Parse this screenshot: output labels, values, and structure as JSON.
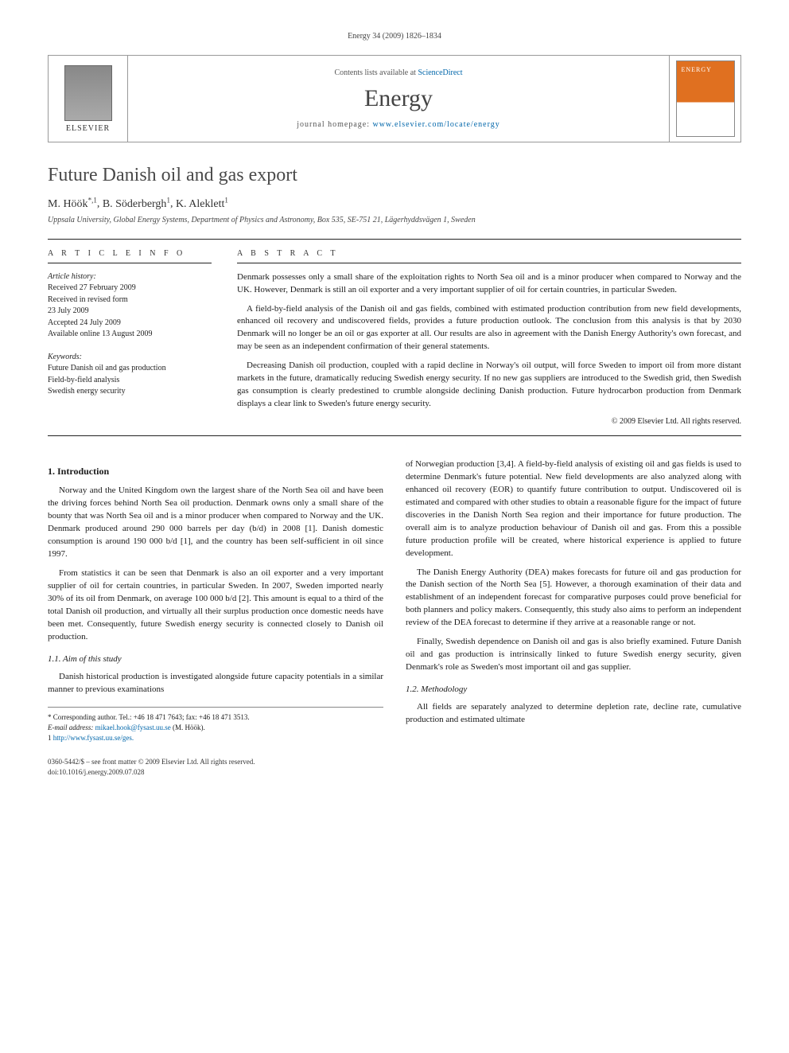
{
  "running_head": "Energy 34 (2009) 1826–1834",
  "masthead": {
    "publisher_label": "ELSEVIER",
    "contents_prefix": "Contents lists available at ",
    "contents_link_text": "ScienceDirect",
    "journal_name": "Energy",
    "homepage_prefix": "journal homepage: ",
    "homepage_url": "www.elsevier.com/locate/energy",
    "cover_title": "ENERGY"
  },
  "article": {
    "title": "Future Danish oil and gas export",
    "authors_html": "M. Höök *,1, B. Söderbergh 1, K. Aleklett 1",
    "authors": [
      {
        "name": "M. Höök",
        "marks": "*,1"
      },
      {
        "name": "B. Söderbergh",
        "marks": "1"
      },
      {
        "name": "K. Aleklett",
        "marks": "1"
      }
    ],
    "affiliation": "Uppsala University, Global Energy Systems, Department of Physics and Astronomy, Box 535, SE-751 21, Lägerhyddsvägen 1, Sweden"
  },
  "info": {
    "label": "A R T I C L E  I N F O",
    "history_label": "Article history:",
    "history": [
      "Received 27 February 2009",
      "Received in revised form",
      "23 July 2009",
      "Accepted 24 July 2009",
      "Available online 13 August 2009"
    ],
    "keywords_label": "Keywords:",
    "keywords": [
      "Future Danish oil and gas production",
      "Field-by-field analysis",
      "Swedish energy security"
    ]
  },
  "abstract": {
    "label": "A B S T R A C T",
    "paragraphs": [
      "Denmark possesses only a small share of the exploitation rights to North Sea oil and is a minor producer when compared to Norway and the UK. However, Denmark is still an oil exporter and a very important supplier of oil for certain countries, in particular Sweden.",
      "A field-by-field analysis of the Danish oil and gas fields, combined with estimated production contribution from new field developments, enhanced oil recovery and undiscovered fields, provides a future production outlook. The conclusion from this analysis is that by 2030 Denmark will no longer be an oil or gas exporter at all. Our results are also in agreement with the Danish Energy Authority's own forecast, and may be seen as an independent confirmation of their general statements.",
      "Decreasing Danish oil production, coupled with a rapid decline in Norway's oil output, will force Sweden to import oil from more distant markets in the future, dramatically reducing Swedish energy security. If no new gas suppliers are introduced to the Swedish grid, then Swedish gas consumption is clearly predestined to crumble alongside declining Danish production. Future hydrocarbon production from Denmark displays a clear link to Sweden's future energy security."
    ],
    "copyright": "© 2009 Elsevier Ltd. All rights reserved."
  },
  "body": {
    "s1_heading": "1. Introduction",
    "s1_p1": "Norway and the United Kingdom own the largest share of the North Sea oil and have been the driving forces behind North Sea oil production. Denmark owns only a small share of the bounty that was North Sea oil and is a minor producer when compared to Norway and the UK. Denmark produced around 290 000 barrels per day (b/d) in 2008 [1]. Danish domestic consumption is around 190 000 b/d [1], and the country has been self-sufficient in oil since 1997.",
    "s1_p2": "From statistics it can be seen that Denmark is also an oil exporter and a very important supplier of oil for certain countries, in particular Sweden. In 2007, Sweden imported nearly 30% of its oil from Denmark, on average 100 000 b/d [2]. This amount is equal to a third of the total Danish oil production, and virtually all their surplus production once domestic needs have been met. Consequently, future Swedish energy security is connected closely to Danish oil production.",
    "s11_heading": "1.1. Aim of this study",
    "s11_p1": "Danish historical production is investigated alongside future capacity potentials in a similar manner to previous examinations",
    "s11_p1_cont": "of Norwegian production [3,4]. A field-by-field analysis of existing oil and gas fields is used to determine Denmark's future potential. New field developments are also analyzed along with enhanced oil recovery (EOR) to quantify future contribution to output. Undiscovered oil is estimated and compared with other studies to obtain a reasonable figure for the impact of future discoveries in the Danish North Sea region and their importance for future production. The overall aim is to analyze production behaviour of Danish oil and gas. From this a possible future production profile will be created, where historical experience is applied to future development.",
    "s11_p2": "The Danish Energy Authority (DEA) makes forecasts for future oil and gas production for the Danish section of the North Sea [5]. However, a thorough examination of their data and establishment of an independent forecast for comparative purposes could prove beneficial for both planners and policy makers. Consequently, this study also aims to perform an independent review of the DEA forecast to determine if they arrive at a reasonable range or not.",
    "s11_p3": "Finally, Swedish dependence on Danish oil and gas is also briefly examined. Future Danish oil and gas production is intrinsically linked to future Swedish energy security, given Denmark's role as Sweden's most important oil and gas supplier.",
    "s12_heading": "1.2. Methodology",
    "s12_p1": "All fields are separately analyzed to determine depletion rate, decline rate, cumulative production and estimated ultimate"
  },
  "footnotes": {
    "corr": "* Corresponding author. Tel.: +46 18 471 7643; fax: +46 18 471 3513.",
    "email_label": "E-mail address: ",
    "email": "mikael.hook@fysast.uu.se",
    "email_suffix": " (M. Höök).",
    "url_marker": "1 ",
    "url": "http://www.fysast.uu.se/ges."
  },
  "footer": {
    "line1": "0360-5442/$ – see front matter © 2009 Elsevier Ltd. All rights reserved.",
    "line2": "doi:10.1016/j.energy.2009.07.028"
  },
  "colors": {
    "link": "#0066aa",
    "rule": "#222222",
    "text": "#1a1a1a",
    "cover_orange": "#e07020"
  },
  "typography": {
    "body_pt": 11,
    "title_pt": 24,
    "journal_pt": 30,
    "info_pt": 10,
    "footnote_pt": 9
  }
}
